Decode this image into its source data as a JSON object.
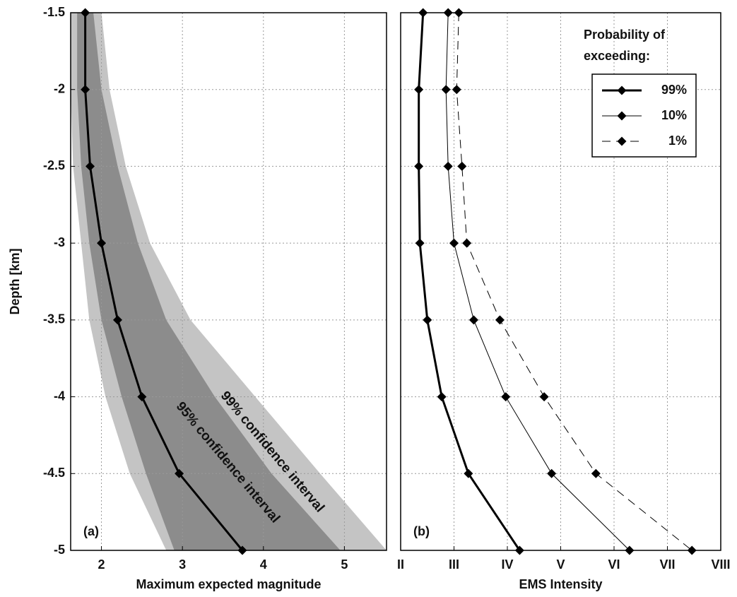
{
  "chart_data": [
    {
      "type": "line",
      "annotation": "(a)",
      "xlabel": "Maximum expected magnitude",
      "ylabel": "Depth [km]",
      "y": [
        -1.5,
        -2,
        -2.5,
        -3,
        -3.5,
        -4,
        -4.5,
        -5
      ],
      "xlim": [
        1.62,
        5.52
      ],
      "xticks": [
        2,
        3,
        4,
        5
      ],
      "ylim": [
        -5,
        -1.5
      ],
      "yticks": [
        -1.5,
        -2,
        -2.5,
        -3,
        -3.5,
        -4,
        -4.5,
        -5
      ],
      "grid": true,
      "bands": [
        {
          "name": "99% confidence interval",
          "color": "#c4c4c4",
          "text_color": "#7a7a7a",
          "lower": [
            1.62,
            1.62,
            1.65,
            1.75,
            1.85,
            2.05,
            2.35,
            2.8
          ],
          "upper": [
            2.0,
            2.1,
            2.3,
            2.6,
            3.1,
            3.9,
            4.7,
            5.52
          ]
        },
        {
          "name": "95% confidence interval",
          "color": "#8c8c8c",
          "text_color": "#555555",
          "lower": [
            1.7,
            1.7,
            1.75,
            1.85,
            2.0,
            2.25,
            2.55,
            2.9
          ],
          "upper": [
            1.9,
            2.0,
            2.2,
            2.45,
            2.8,
            3.4,
            4.1,
            4.95
          ]
        }
      ],
      "series": [
        {
          "color": "#000000",
          "linewidth": 3,
          "linestyle": "solid",
          "values": [
            1.8,
            1.8,
            1.86,
            2.0,
            2.2,
            2.5,
            2.96,
            3.74
          ]
        }
      ]
    },
    {
      "type": "line",
      "annotation": "(b)",
      "xlabel": "EMS Intensity",
      "y": [
        -1.5,
        -2,
        -2.5,
        -3,
        -3.5,
        -4,
        -4.5,
        -5
      ],
      "xlim": [
        2,
        8
      ],
      "xticks": [
        {
          "value": 2,
          "label": "II"
        },
        {
          "value": 3,
          "label": "III"
        },
        {
          "value": 4,
          "label": "IV"
        },
        {
          "value": 5,
          "label": "V"
        },
        {
          "value": 6,
          "label": "VI"
        },
        {
          "value": 7,
          "label": "VII"
        },
        {
          "value": 8,
          "label": "VIII"
        }
      ],
      "ylim": [
        -5,
        -1.5
      ],
      "yticks": [
        -1.5,
        -2,
        -2.5,
        -3,
        -3.5,
        -4,
        -4.5,
        -5
      ],
      "grid": true,
      "legend_title": "Probability of exceeding:",
      "legend": "upper right",
      "series": [
        {
          "name": "99%",
          "color": "#000000",
          "linewidth": 3,
          "linestyle": "solid",
          "values": [
            2.42,
            2.34,
            2.34,
            2.36,
            2.5,
            2.77,
            3.27,
            4.23
          ]
        },
        {
          "name": "10%",
          "color": "#000000",
          "linewidth": 1,
          "linestyle": "solid",
          "values": [
            2.89,
            2.85,
            2.89,
            3.0,
            3.37,
            3.97,
            4.83,
            6.29
          ]
        },
        {
          "name": "1%",
          "color": "#000000",
          "linewidth": 1,
          "linestyle": "dashed",
          "values": [
            3.09,
            3.05,
            3.15,
            3.24,
            3.86,
            4.69,
            5.66,
            7.46
          ]
        }
      ]
    }
  ]
}
